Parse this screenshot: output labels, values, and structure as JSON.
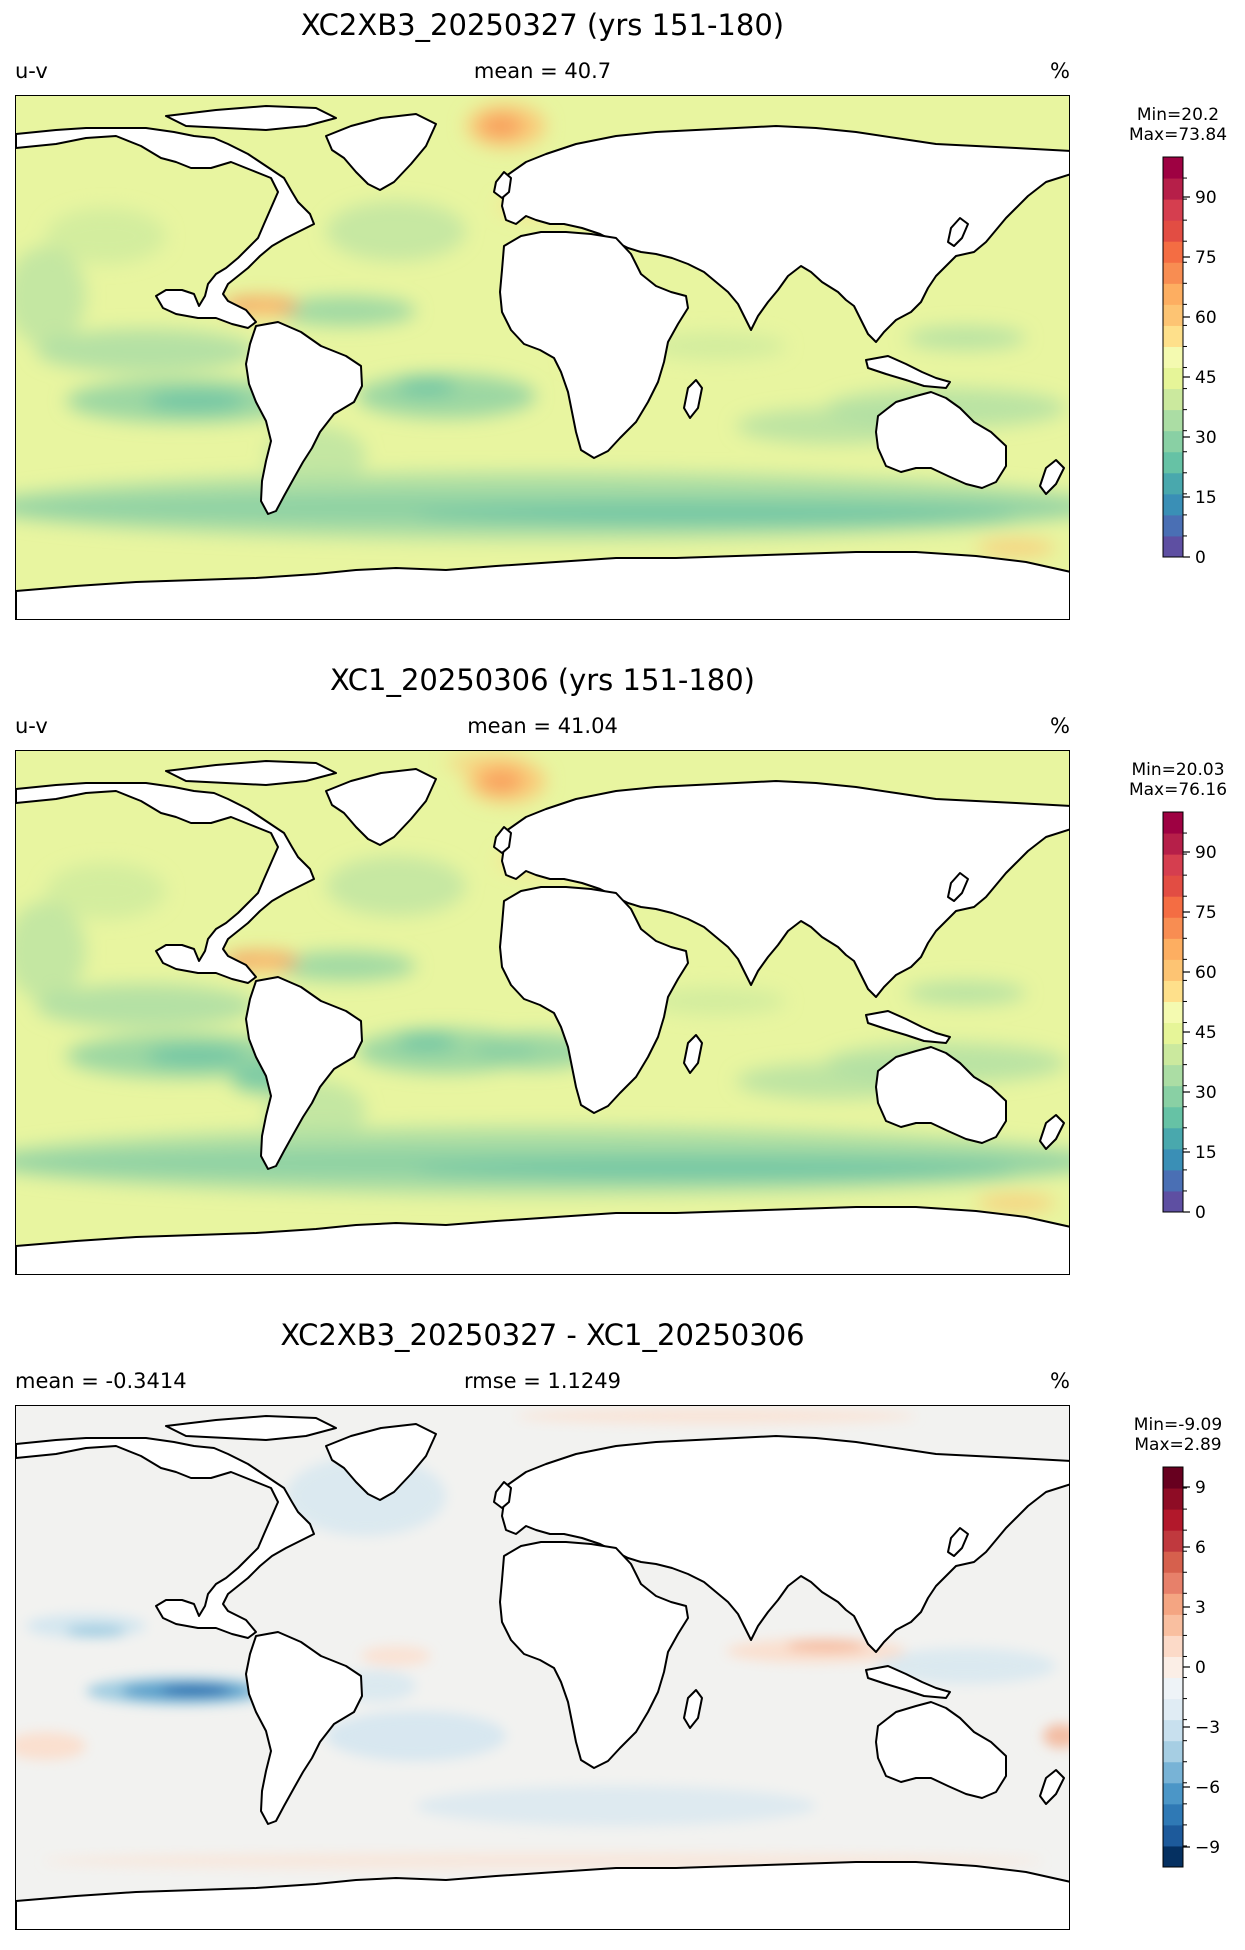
{
  "panels": [
    {
      "title": "XC2XB3_20250327 (yrs 151-180)",
      "left_label": "u-v",
      "center_label": "mean = 40.7",
      "right_label": "%",
      "min_label": "Min=20.2",
      "max_label": "Max=73.84",
      "colorbar": {
        "ticks": [
          "0",
          "15",
          "30",
          "45",
          "60",
          "75",
          "90"
        ],
        "range": [
          0,
          100
        ],
        "colors": [
          "#5e4fa2",
          "#4a6fb4",
          "#3a8fb6",
          "#49a8ad",
          "#66c2a5",
          "#89d0a4",
          "#abdda4",
          "#cbe99e",
          "#e6f598",
          "#f4fab0",
          "#fee08b",
          "#fdc473",
          "#fdae61",
          "#f88d52",
          "#f46d43",
          "#e24d43",
          "#d53e4f",
          "#b61f49",
          "#9e0142"
        ]
      },
      "map_style": "field"
    },
    {
      "title": "XC1_20250306 (yrs 151-180)",
      "left_label": "u-v",
      "center_label": "mean = 41.04",
      "right_label": "%",
      "min_label": "Min=20.03",
      "max_label": "Max=76.16",
      "colorbar": {
        "ticks": [
          "0",
          "15",
          "30",
          "45",
          "60",
          "75",
          "90"
        ],
        "range": [
          0,
          100
        ],
        "colors": [
          "#5e4fa2",
          "#4a6fb4",
          "#3a8fb6",
          "#49a8ad",
          "#66c2a5",
          "#89d0a4",
          "#abdda4",
          "#cbe99e",
          "#e6f598",
          "#f4fab0",
          "#fee08b",
          "#fdc473",
          "#fdae61",
          "#f88d52",
          "#f46d43",
          "#e24d43",
          "#d53e4f",
          "#b61f49",
          "#9e0142"
        ]
      },
      "map_style": "field"
    },
    {
      "title": "XC2XB3_20250327 - XC1_20250306",
      "left_label": "mean = -0.3414",
      "center_label": "rmse = 1.1249",
      "right_label": "%",
      "min_label": "Min=-9.09",
      "max_label": "Max=2.89",
      "colorbar": {
        "ticks": [
          "−9",
          "−6",
          "−3",
          "0",
          "3",
          "6",
          "9"
        ],
        "range": [
          -10,
          10
        ],
        "colors": [
          "#053061",
          "#1d5a9b",
          "#2f79b5",
          "#4b96c7",
          "#78b3d6",
          "#a6cee3",
          "#c8e0ee",
          "#e0ecf4",
          "#eef3f7",
          "#fbeee6",
          "#fcdac8",
          "#f9bfa0",
          "#f4a582",
          "#e7806a",
          "#d6604d",
          "#c0393e",
          "#b2182b",
          "#8e0c25",
          "#67001f"
        ]
      },
      "map_style": "diff"
    }
  ],
  "colors": {
    "land": "#ffffff",
    "coast": "#000000",
    "field_base": "#e8f5a0",
    "diff_base": "#f2f2f0"
  }
}
